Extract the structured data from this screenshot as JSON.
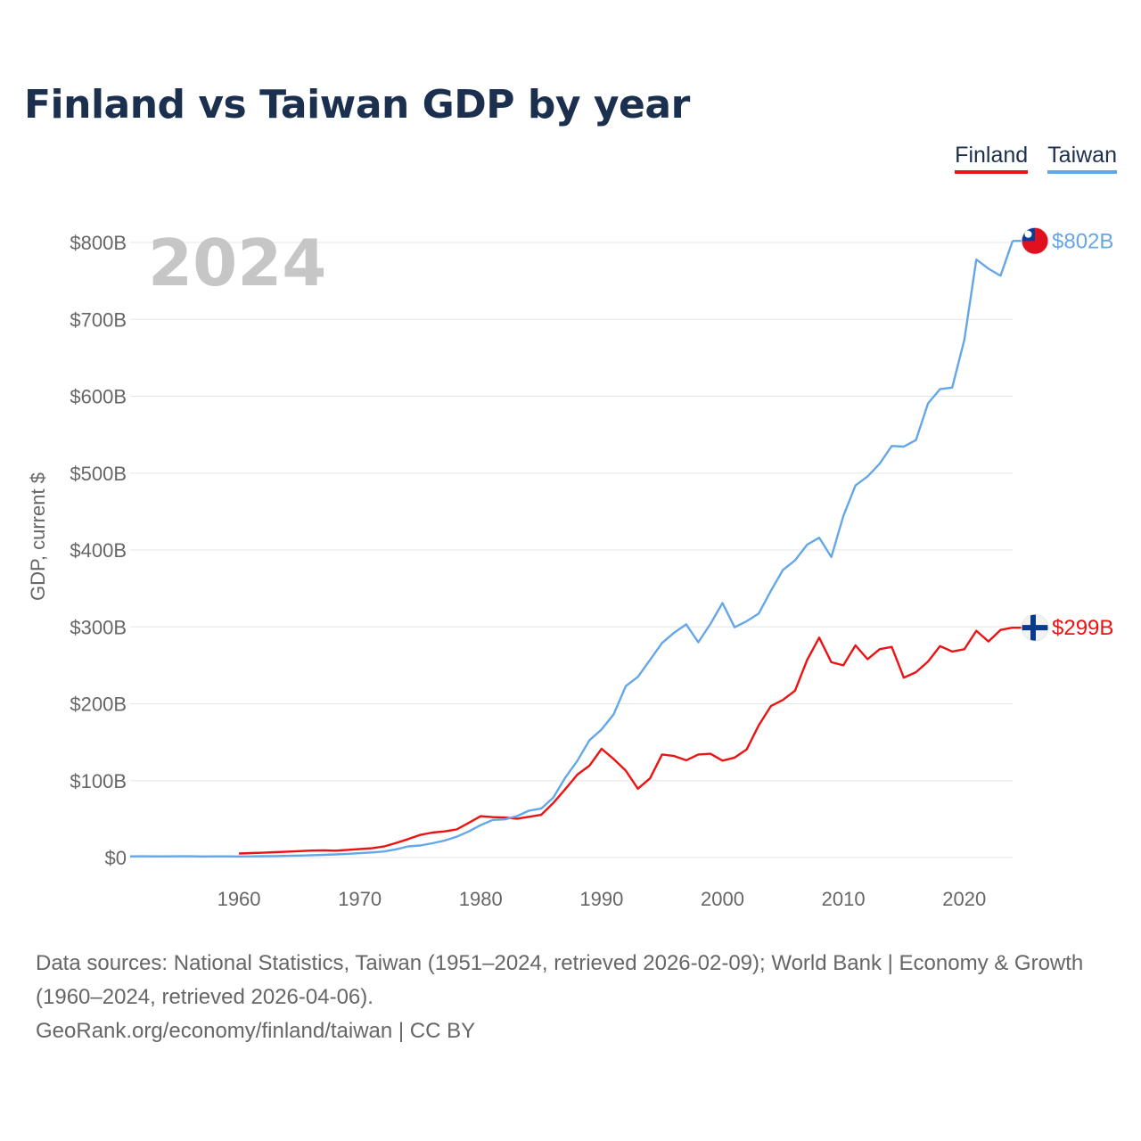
{
  "title": "Finland vs Taiwan GDP by year",
  "legend": {
    "finland": "Finland",
    "taiwan": "Taiwan"
  },
  "year_label": "2024",
  "footer": {
    "sources": "Data sources: National Statistics, Taiwan (1951–2024, retrieved 2026-02-09); World Bank | Economy & Growth (1960–2024, retrieved 2026-04-06).",
    "credit": "GeoRank.org/economy/finland/taiwan | CC BY"
  },
  "colors": {
    "finland": "#ee1111",
    "taiwan": "#64a7e8",
    "grid": "#e6e6e6",
    "title": "#1b2f4e"
  },
  "chart_data": {
    "type": "line",
    "title": "Finland vs Taiwan GDP by year",
    "ylabel": "GDP, current $",
    "xlabel": "",
    "xlim": [
      1951,
      2024
    ],
    "ylim": [
      0,
      800
    ],
    "y_unit": "billion USD",
    "x_ticks": [
      1960,
      1970,
      1980,
      1990,
      2000,
      2010,
      2020
    ],
    "y_ticks": [
      {
        "value": 0,
        "label": "$0"
      },
      {
        "value": 100,
        "label": "$100B"
      },
      {
        "value": 200,
        "label": "$200B"
      },
      {
        "value": 300,
        "label": "$300B"
      },
      {
        "value": 400,
        "label": "$400B"
      },
      {
        "value": 500,
        "label": "$500B"
      },
      {
        "value": 600,
        "label": "$600B"
      },
      {
        "value": 700,
        "label": "$700B"
      },
      {
        "value": 800,
        "label": "$800B"
      }
    ],
    "series": [
      {
        "name": "Finland",
        "color": "#ee1111",
        "end_label": "$299B",
        "flag": "finland-flag-icon",
        "x": [
          1960,
          1961,
          1962,
          1963,
          1964,
          1965,
          1966,
          1967,
          1968,
          1969,
          1970,
          1971,
          1972,
          1973,
          1974,
          1975,
          1976,
          1977,
          1978,
          1979,
          1980,
          1981,
          1982,
          1983,
          1984,
          1985,
          1986,
          1987,
          1988,
          1989,
          1990,
          1991,
          1992,
          1993,
          1994,
          1995,
          1996,
          1997,
          1998,
          1999,
          2000,
          2001,
          2002,
          2003,
          2004,
          2005,
          2006,
          2007,
          2008,
          2009,
          2010,
          2011,
          2012,
          2013,
          2014,
          2015,
          2016,
          2017,
          2018,
          2019,
          2020,
          2021,
          2022,
          2023,
          2024
        ],
        "values": [
          5.2,
          5.8,
          6.3,
          6.9,
          7.6,
          8.4,
          9.0,
          9.4,
          8.9,
          10.0,
          11.0,
          12.0,
          14.4,
          19.0,
          24.0,
          29.5,
          32.5,
          34.0,
          36.5,
          45.0,
          53.8,
          52.5,
          52.0,
          50.5,
          53.0,
          55.5,
          71.0,
          89.0,
          108.0,
          119.5,
          141.5,
          128.0,
          113.0,
          89.5,
          103.0,
          134.0,
          132.0,
          126.5,
          134.0,
          135.0,
          126.0,
          130.0,
          140.5,
          172.0,
          197.0,
          205.0,
          217.0,
          257.0,
          286.0,
          254.0,
          250.0,
          276.0,
          258.0,
          271.0,
          274.0,
          234.0,
          241.0,
          255.0,
          275.0,
          268.0,
          271.0,
          295.0,
          281.0,
          296.0,
          299.0
        ]
      },
      {
        "name": "Taiwan",
        "color": "#64a7e8",
        "end_label": "$802B",
        "flag": "taiwan-flag-icon",
        "x": [
          1951,
          1952,
          1953,
          1954,
          1955,
          1956,
          1957,
          1958,
          1959,
          1960,
          1961,
          1962,
          1963,
          1964,
          1965,
          1966,
          1967,
          1968,
          1969,
          1970,
          1971,
          1972,
          1973,
          1974,
          1975,
          1976,
          1977,
          1978,
          1979,
          1980,
          1981,
          1982,
          1983,
          1984,
          1985,
          1986,
          1987,
          1988,
          1989,
          1990,
          1991,
          1992,
          1993,
          1994,
          1995,
          1996,
          1997,
          1998,
          1999,
          2000,
          2001,
          2002,
          2003,
          2004,
          2005,
          2006,
          2007,
          2008,
          2009,
          2010,
          2011,
          2012,
          2013,
          2014,
          2015,
          2016,
          2017,
          2018,
          2019,
          2020,
          2021,
          2022,
          2023,
          2024
        ],
        "values": [
          1.5,
          1.6,
          1.5,
          1.5,
          1.6,
          1.6,
          1.4,
          1.5,
          1.5,
          1.4,
          1.5,
          1.7,
          1.9,
          2.2,
          2.6,
          3.0,
          3.5,
          4.1,
          4.8,
          5.7,
          6.6,
          7.9,
          10.7,
          14.5,
          15.7,
          18.6,
          22.0,
          27.0,
          33.8,
          42.2,
          48.9,
          49.6,
          53.9,
          61.0,
          63.6,
          78.0,
          104.0,
          126.0,
          152.6,
          166.6,
          186.4,
          222.9,
          235.0,
          257.0,
          279.1,
          292.5,
          303.3,
          280.0,
          303.9,
          331.0,
          299.5,
          307.4,
          317.4,
          346.9,
          374.0,
          386.5,
          406.9,
          416.0,
          390.8,
          444.3,
          483.9,
          495.8,
          512.2,
          535.3,
          534.5,
          543.0,
          590.7,
          609.3,
          611.3,
          673.3,
          777.9,
          765.9,
          756.6,
          802.0
        ]
      }
    ]
  }
}
